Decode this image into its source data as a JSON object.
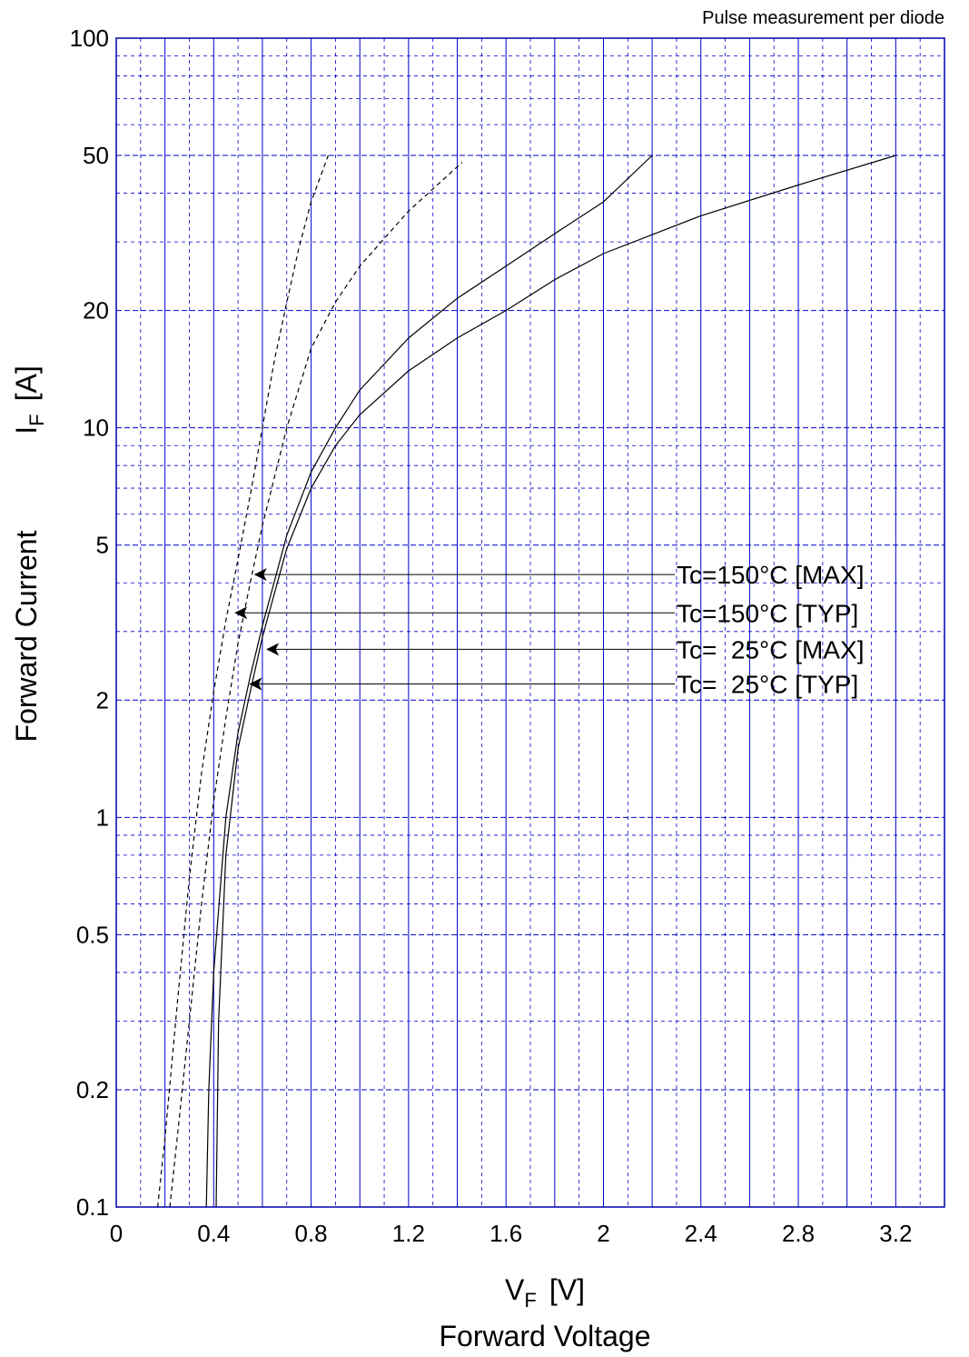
{
  "chart_data": {
    "type": "line",
    "title": "Pulse measurement per diode",
    "xlabel_main": "V",
    "xlabel_sub": "F",
    "xlabel_unit": "[V]",
    "xlabel_name": "Forward Voltage",
    "ylabel_name": "Forward Current",
    "ylabel_main": "I",
    "ylabel_sub": "F",
    "ylabel_unit": "[A]",
    "xlim": [
      0,
      3.4
    ],
    "ylim": [
      0.1,
      100
    ],
    "yscale": "log",
    "grid": true,
    "x_ticks": [
      {
        "v": 0,
        "label": "0"
      },
      {
        "v": 0.4,
        "label": "0.4"
      },
      {
        "v": 0.8,
        "label": "0.8"
      },
      {
        "v": 1.2,
        "label": "1.2"
      },
      {
        "v": 1.6,
        "label": "1.6"
      },
      {
        "v": 2.0,
        "label": "2"
      },
      {
        "v": 2.4,
        "label": "2.4"
      },
      {
        "v": 2.8,
        "label": "2.8"
      },
      {
        "v": 3.2,
        "label": "3.2"
      }
    ],
    "y_ticks": [
      {
        "v": 0.1,
        "label": "0.1"
      },
      {
        "v": 0.2,
        "label": "0.2"
      },
      {
        "v": 0.5,
        "label": "0.5"
      },
      {
        "v": 1,
        "label": "1"
      },
      {
        "v": 2,
        "label": "2"
      },
      {
        "v": 5,
        "label": "5"
      },
      {
        "v": 10,
        "label": "10"
      },
      {
        "v": 20,
        "label": "20"
      },
      {
        "v": 50,
        "label": "50"
      },
      {
        "v": 100,
        "label": "100"
      }
    ],
    "series": [
      {
        "name": "Tc=150°C [MAX]",
        "style": "dashed",
        "x": [
          0.22,
          0.25,
          0.3,
          0.35,
          0.4,
          0.45,
          0.5,
          0.55,
          0.6,
          0.65,
          0.7,
          0.8,
          0.9,
          1.0,
          1.2,
          1.42
        ],
        "y": [
          0.1,
          0.15,
          0.3,
          0.6,
          1.1,
          1.8,
          2.8,
          4.0,
          5.6,
          7.5,
          10,
          16,
          21,
          26,
          36,
          48
        ]
      },
      {
        "name": "Tc=150°C [TYP]",
        "style": "dashed",
        "x": [
          0.17,
          0.2,
          0.25,
          0.3,
          0.35,
          0.4,
          0.45,
          0.5,
          0.55,
          0.6,
          0.65,
          0.7,
          0.75,
          0.8,
          0.87
        ],
        "y": [
          0.1,
          0.15,
          0.33,
          0.7,
          1.3,
          2.1,
          3.2,
          4.6,
          6.7,
          10,
          15,
          21,
          29,
          38,
          50
        ]
      },
      {
        "name": "Tc=  25°C [MAX]",
        "style": "solid",
        "x": [
          0.41,
          0.42,
          0.45,
          0.5,
          0.55,
          0.6,
          0.7,
          0.8,
          0.9,
          1.0,
          1.2,
          1.4,
          1.6,
          1.8,
          2.0,
          2.4,
          2.8,
          3.2
        ],
        "y": [
          0.1,
          0.3,
          0.8,
          1.5,
          2.1,
          2.9,
          4.9,
          7.0,
          9.0,
          10.8,
          14,
          17,
          20,
          24,
          28,
          35,
          42,
          50
        ]
      },
      {
        "name": "Tc=  25°C [TYP]",
        "style": "solid",
        "x": [
          0.37,
          0.38,
          0.4,
          0.45,
          0.5,
          0.55,
          0.6,
          0.7,
          0.8,
          0.9,
          1.0,
          1.2,
          1.4,
          1.6,
          1.8,
          2.0,
          2.2
        ],
        "y": [
          0.1,
          0.2,
          0.4,
          1.0,
          1.65,
          2.3,
          3.1,
          5.3,
          7.7,
          10,
          12.5,
          17,
          21.5,
          26,
          31.5,
          38,
          50
        ]
      }
    ],
    "annotations": [
      {
        "text": "Tc=150°C [MAX]",
        "arrow_to": [
          0.57,
          4.2
        ]
      },
      {
        "text": "Tc=150°C [TYP]",
        "arrow_to": [
          0.49,
          3.35
        ]
      },
      {
        "text": "Tc=  25°C [MAX]",
        "arrow_to": [
          0.62,
          2.7
        ]
      },
      {
        "text": "Tc=  25°C [TYP]",
        "arrow_to": [
          0.55,
          2.2
        ]
      }
    ]
  }
}
